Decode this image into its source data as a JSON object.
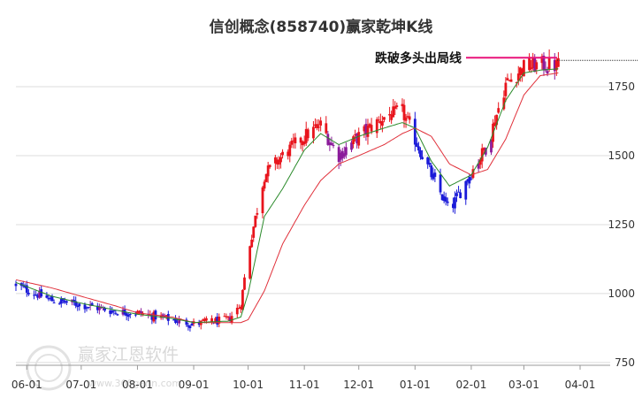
{
  "chart_data": {
    "type": "candlestick",
    "title": "信创概念(858740)赢家乾坤K线",
    "x_tick_labels": [
      "06-01",
      "07-01",
      "08-01",
      "09-01",
      "10-01",
      "11-01",
      "12-01",
      "01-01",
      "02-01",
      "03-01",
      "04-01"
    ],
    "y_tick_labels": [
      "750",
      "1000",
      "1250",
      "1500",
      "1750"
    ],
    "ylim": [
      740,
      1920
    ],
    "grid": "horizontal",
    "annotation": {
      "text": "跌破多头出局线",
      "value": 1855
    },
    "colors": {
      "up": "#e8141c",
      "down": "#1a1ad8",
      "neutral": "#8b1a9a",
      "fast_line": "#2a8a2a",
      "slow_line": "#e0303a",
      "annotation_line": "#e8147a"
    },
    "series_outline": {
      "x": [
        "2023-05-26",
        "2023-06-15",
        "2023-07-01",
        "2023-07-20",
        "2023-08-01",
        "2023-08-20",
        "2023-09-01",
        "2023-09-20",
        "2023-09-27",
        "2023-10-01",
        "2023-10-10",
        "2023-10-20",
        "2023-11-01",
        "2023-11-10",
        "2023-11-20",
        "2023-12-01",
        "2023-12-15",
        "2023-12-25",
        "2024-01-01",
        "2024-01-10",
        "2024-01-20",
        "2024-02-01",
        "2024-02-10",
        "2024-02-20",
        "2024-03-01",
        "2024-03-10",
        "2024-03-20"
      ],
      "close": [
        1030,
        975,
        960,
        935,
        930,
        905,
        890,
        905,
        960,
        1150,
        1430,
        1500,
        1570,
        1610,
        1500,
        1570,
        1640,
        1660,
        1560,
        1430,
        1300,
        1440,
        1540,
        1760,
        1820,
        1830,
        1825
      ]
    },
    "fast_line": [
      1040,
      990,
      965,
      940,
      925,
      910,
      895,
      900,
      915,
      1000,
      1280,
      1380,
      1520,
      1580,
      1540,
      1570,
      1600,
      1620,
      1600,
      1480,
      1390,
      1430,
      1530,
      1700,
      1800,
      1810,
      1815
    ],
    "slow_line": [
      1050,
      1020,
      990,
      955,
      930,
      915,
      895,
      895,
      895,
      905,
      1010,
      1180,
      1320,
      1410,
      1470,
      1500,
      1540,
      1580,
      1600,
      1570,
      1470,
      1430,
      1450,
      1560,
      1720,
      1790,
      1800
    ]
  },
  "watermark": {
    "name": "赢家江恩软件",
    "url": "www.360gann.com"
  }
}
